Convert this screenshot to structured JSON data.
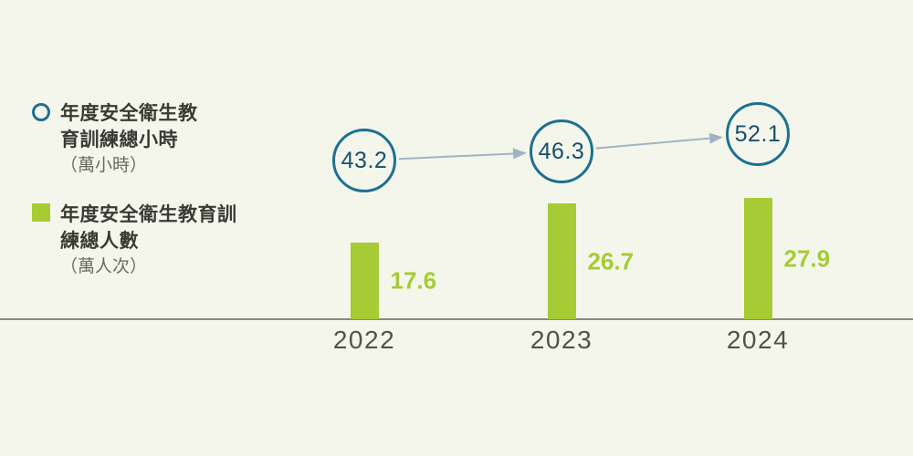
{
  "chart_data": {
    "type": "bar",
    "title": "",
    "categories": [
      "2022",
      "2023",
      "2024"
    ],
    "series": [
      {
        "name": "年度安全衛生教育訓練總小時（萬小時）",
        "style": "circle-markers-with-trend-arrows",
        "values": [
          43.2,
          46.3,
          52.1
        ]
      },
      {
        "name": "年度安全衛生教育訓練總人數（萬人次）",
        "style": "bars",
        "values": [
          17.6,
          26.7,
          27.9
        ]
      }
    ],
    "legend_position": "left",
    "grid": false,
    "baseline_axis": true
  },
  "legend": {
    "hours": {
      "marker": "circle-outline",
      "line1": "年度安全衛生教",
      "line2": "育訓練總小時",
      "unit": "（萬小時）"
    },
    "people": {
      "marker": "square-filled",
      "line1": "年度安全衛生教育訓",
      "line2": "練總人數",
      "unit": "（萬人次）"
    }
  },
  "colors": {
    "background": "#f4f6eb",
    "bar_green": "#a6cb35",
    "circle_stroke": "#1d6f92",
    "circle_text": "#14506e",
    "arrow": "#a3b2c3",
    "axis": "#8a897f",
    "year_text": "#52514b",
    "legend_text": "#3a3a35",
    "unit_text": "#6a6a64"
  }
}
